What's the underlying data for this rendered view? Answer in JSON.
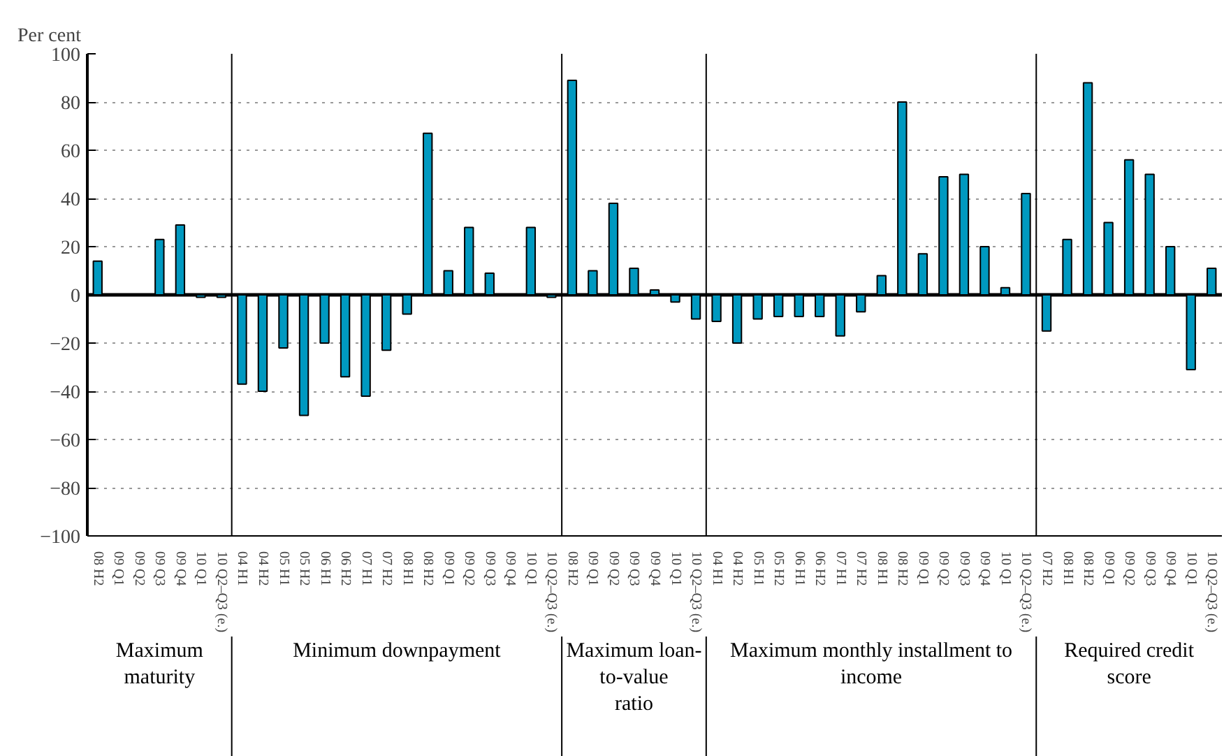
{
  "chart_data": {
    "type": "bar",
    "ylabel": "Per cent",
    "categories": [
      "08 H2",
      "09 Q1",
      "09 Q2",
      "09 Q3",
      "09 Q4",
      "10 Q1",
      "10 Q2–Q3 (e.)",
      "04 H1",
      "04 H2",
      "05 H1",
      "05 H2",
      "06 H1",
      "06 H2",
      "07 H1",
      "07 H2",
      "08 H1",
      "08 H2",
      "09 Q1",
      "09 Q2",
      "09 Q3",
      "09 Q4",
      "10 Q1",
      "10 Q2–Q3 (e.)",
      "08 H2",
      "09 Q1",
      "09 Q2",
      "09 Q3",
      "09 Q4",
      "10 Q1",
      "10 Q2–Q3 (e.)",
      "04 H1",
      "04 H2",
      "05 H1",
      "05 H2",
      "06 H1",
      "06 H2",
      "07 H1",
      "07 H2",
      "08 H1",
      "08 H2",
      "09 Q1",
      "09 Q2",
      "09 Q3",
      "09 Q4",
      "10 Q1",
      "10 Q2–Q3 (e.)",
      "07 H2",
      "08 H1",
      "08 H2",
      "09 Q1",
      "09 Q2",
      "09 Q3",
      "09 Q4",
      "10 Q1",
      "10 Q2–Q3 (e.)"
    ],
    "values": [
      14,
      null,
      null,
      23,
      29,
      -1,
      -1,
      -37,
      -40,
      -22,
      -50,
      -20,
      -34,
      -42,
      -23,
      -8,
      67,
      10,
      28,
      9,
      null,
      28,
      -1,
      89,
      10,
      38,
      11,
      2,
      -3,
      -10,
      -11,
      -20,
      -10,
      -9,
      -9,
      -9,
      -17,
      -7,
      8,
      80,
      17,
      49,
      50,
      20,
      3,
      42,
      -15,
      23,
      88,
      30,
      56,
      50,
      20,
      -31,
      11
    ],
    "color": "#0099c0",
    "ylim": [
      -100,
      100
    ],
    "yticks": [
      {
        "value": -100,
        "label": "−100"
      },
      {
        "value": -80,
        "label": "−80"
      },
      {
        "value": -60,
        "label": "−60"
      },
      {
        "value": -40,
        "label": "−40"
      },
      {
        "value": -20,
        "label": "−20"
      },
      0,
      20,
      40,
      60,
      80,
      100
    ],
    "grid": "y",
    "ref_lines": [
      {
        "axis": "y",
        "value": 0,
        "color": "#000000"
      }
    ],
    "annotations": [
      "Maximum maturity",
      "Minimum downpayment",
      "Maximum loan-to-value ratio",
      "Maximum monthly installment to income",
      "Required credit score"
    ]
  }
}
